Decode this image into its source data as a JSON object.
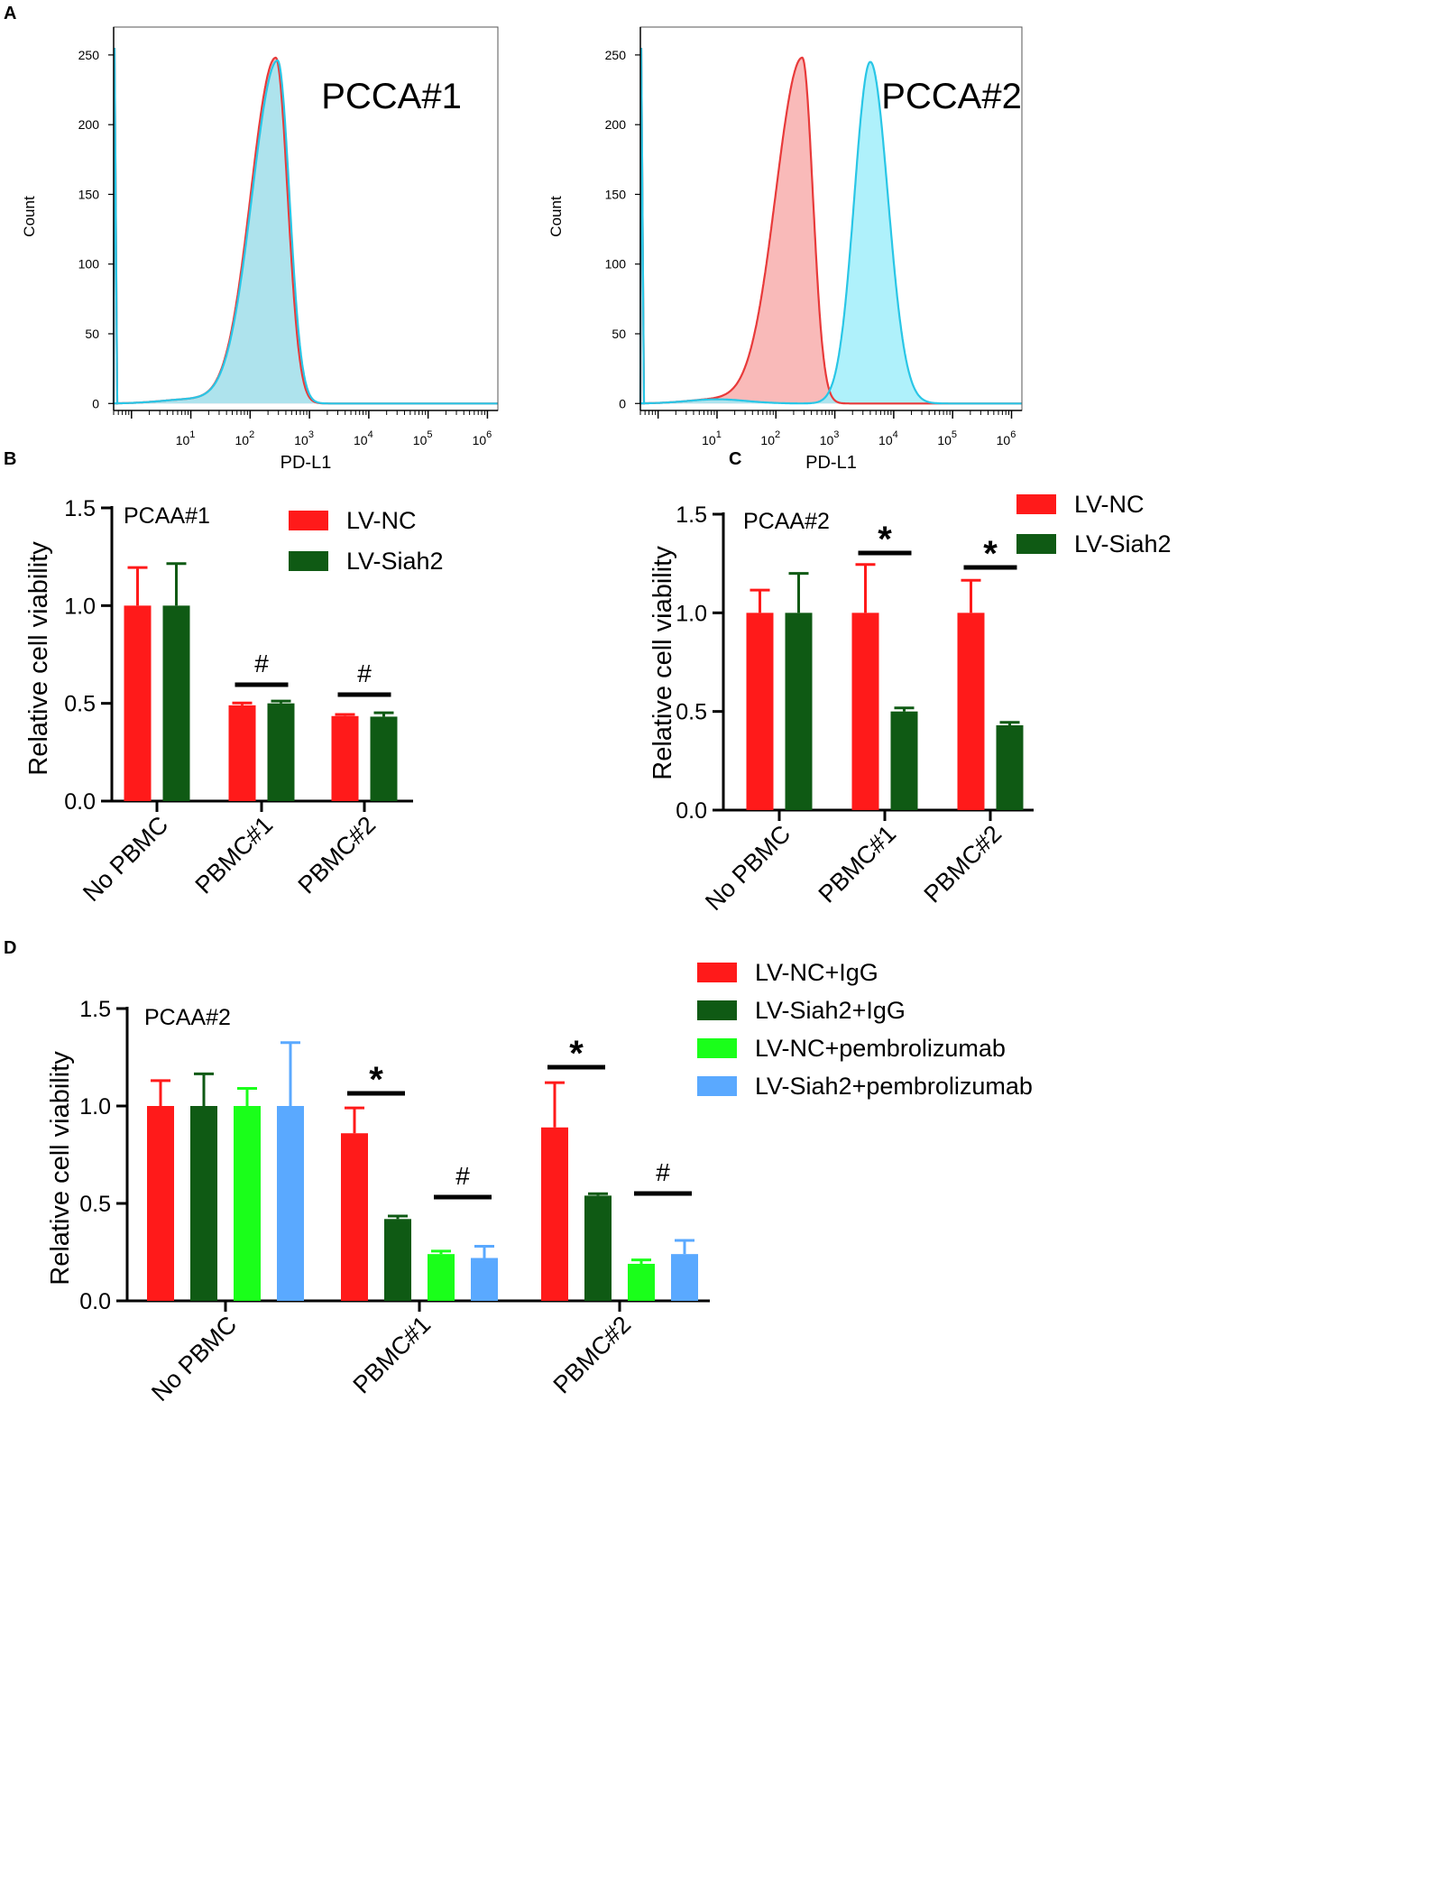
{
  "panel_letters": [
    "A",
    "B",
    "C",
    "D"
  ],
  "colors": {
    "red": "#ff1a1a",
    "dark_green": "#0f5a14",
    "bright_green": "#1aff1a",
    "light_blue": "#5aa9ff",
    "hist_red_fill": "#f7a9a8",
    "hist_red_line": "#e83a3a",
    "hist_cyan_fill": "#9beefa",
    "hist_cyan_line": "#29c6e6",
    "hist_overlap_fill": "#8fa9bf"
  },
  "chart_data": [
    {
      "id": "A1",
      "type": "area",
      "title": "PCCA#1",
      "xlabel": "PD-L1",
      "ylabel": "Count",
      "xscale": "log",
      "xlim": [
        0.5,
        1500000
      ],
      "ylim": [
        -5,
        270
      ],
      "x_tick_labels": [
        "10",
        "10",
        "10",
        "10",
        "10",
        "10"
      ],
      "x_tick_exponents": [
        "1",
        "2",
        "3",
        "4",
        "5",
        "6"
      ],
      "x_tick_values": [
        10,
        100,
        1000,
        10000,
        100000,
        1000000
      ],
      "y_ticks": [
        0,
        50,
        100,
        150,
        200,
        250
      ],
      "series": [
        {
          "name": "red",
          "peak_x": 270,
          "peak_y": 248,
          "sigma_left": 0.42,
          "sigma_right": 0.2
        },
        {
          "name": "cyan",
          "peak_x": 290,
          "peak_y": 246,
          "sigma_left": 0.43,
          "sigma_right": 0.2
        }
      ]
    },
    {
      "id": "A2",
      "type": "area",
      "title": "PCCA#2",
      "xlabel": "PD-L1",
      "ylabel": "Count",
      "xscale": "log",
      "xlim": [
        0.5,
        1500000
      ],
      "ylim": [
        -5,
        270
      ],
      "x_tick_labels": [
        "10",
        "10",
        "10",
        "10",
        "10",
        "10"
      ],
      "x_tick_exponents": [
        "1",
        "2",
        "3",
        "4",
        "5",
        "6"
      ],
      "x_tick_values": [
        10,
        100,
        1000,
        10000,
        100000,
        1000000
      ],
      "y_ticks": [
        0,
        50,
        100,
        150,
        200,
        250
      ],
      "series": [
        {
          "name": "red",
          "peak_x": 280,
          "peak_y": 248,
          "sigma_left": 0.45,
          "sigma_right": 0.18
        },
        {
          "name": "cyan",
          "peak_x": 4000,
          "peak_y": 245,
          "sigma_left": 0.27,
          "sigma_right": 0.3
        }
      ]
    },
    {
      "id": "B",
      "type": "bar",
      "annotation": "PCAA#1",
      "ylabel": "Relative cell viability",
      "ylim": [
        0,
        1.5
      ],
      "y_ticks": [
        "0.0",
        "0.5",
        "1.0",
        "1.5"
      ],
      "categories": [
        "No PBMC",
        "PBMC#1",
        "PBMC#2"
      ],
      "series": [
        {
          "name": "LV-NC",
          "values": [
            1.0,
            0.49,
            0.435
          ],
          "errors": [
            0.195,
            0.012,
            0.008
          ]
        },
        {
          "name": "LV-Siah2",
          "values": [
            1.0,
            0.5,
            0.432
          ],
          "errors": [
            0.215,
            0.012,
            0.02
          ]
        }
      ],
      "significance": [
        {
          "category": 1,
          "label": "#"
        },
        {
          "category": 2,
          "label": "#"
        }
      ]
    },
    {
      "id": "C",
      "type": "bar",
      "annotation": "PCAA#2",
      "ylabel": "Relative cell viability",
      "ylim": [
        0,
        1.5
      ],
      "y_ticks": [
        "0.0",
        "0.5",
        "1.0",
        "1.5"
      ],
      "categories": [
        "No PBMC",
        "PBMC#1",
        "PBMC#2"
      ],
      "series": [
        {
          "name": "LV-NC",
          "values": [
            1.0,
            1.0,
            1.0
          ],
          "errors": [
            0.115,
            0.245,
            0.165
          ]
        },
        {
          "name": "LV-Siah2",
          "values": [
            1.0,
            0.5,
            0.43
          ],
          "errors": [
            0.2,
            0.018,
            0.015
          ]
        }
      ],
      "significance": [
        {
          "category": 1,
          "label": "*"
        },
        {
          "category": 2,
          "label": "*"
        }
      ]
    },
    {
      "id": "D",
      "type": "bar",
      "annotation": "PCAA#2",
      "ylabel": "Relative cell viability",
      "ylim": [
        0,
        1.5
      ],
      "y_ticks": [
        "0.0",
        "0.5",
        "1.0",
        "1.5"
      ],
      "categories": [
        "No PBMC",
        "PBMC#1",
        "PBMC#2"
      ],
      "series": [
        {
          "name": "LV-NC+IgG",
          "values": [
            1.0,
            0.86,
            0.89
          ],
          "errors": [
            0.13,
            0.13,
            0.23
          ]
        },
        {
          "name": "LV-Siah2+IgG",
          "values": [
            1.0,
            0.42,
            0.54
          ],
          "errors": [
            0.165,
            0.015,
            0.01
          ]
        },
        {
          "name": "LV-NC+pembrolizumab",
          "values": [
            1.0,
            0.24,
            0.19
          ],
          "errors": [
            0.09,
            0.015,
            0.02
          ]
        },
        {
          "name": "LV-Siah2+pembrolizumab",
          "values": [
            1.0,
            0.22,
            0.24
          ],
          "errors": [
            0.325,
            0.06,
            0.07
          ]
        }
      ],
      "significance": [
        {
          "category": 1,
          "label": "*",
          "pair": [
            0,
            1
          ]
        },
        {
          "category": 1,
          "label": "#",
          "pair": [
            2,
            3
          ]
        },
        {
          "category": 2,
          "label": "*",
          "pair": [
            0,
            1
          ]
        },
        {
          "category": 2,
          "label": "#",
          "pair": [
            2,
            3
          ]
        }
      ]
    }
  ]
}
